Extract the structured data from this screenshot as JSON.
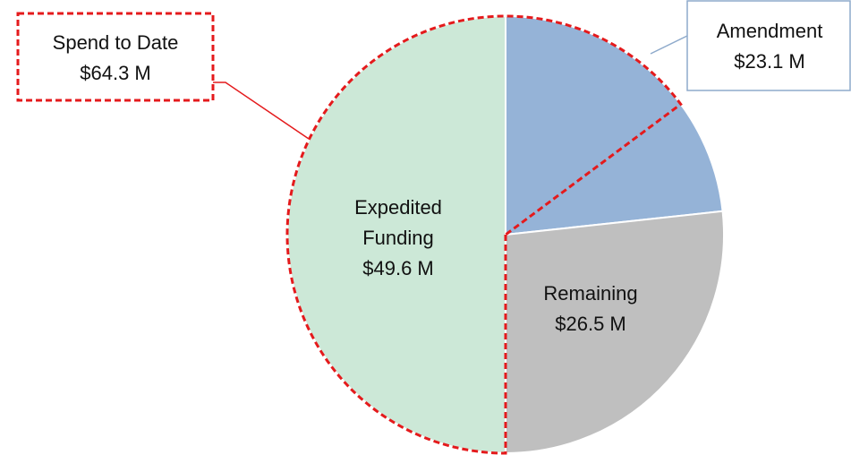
{
  "chart_data": {
    "type": "pie",
    "categories": [
      "Amendment",
      "Remaining",
      "Expedited Funding"
    ],
    "values": [
      23.1,
      26.5,
      49.6
    ],
    "value_labels": [
      "$23.1 M",
      "$26.5 M",
      "$49.6 M"
    ],
    "colors": [
      "#95b3d7",
      "#bfbfbf",
      "#cce8d7"
    ],
    "annotation": {
      "label": "Spend to Date",
      "value": 64.3,
      "value_label": "$64.3 M",
      "color": "#e41a1c"
    }
  }
}
